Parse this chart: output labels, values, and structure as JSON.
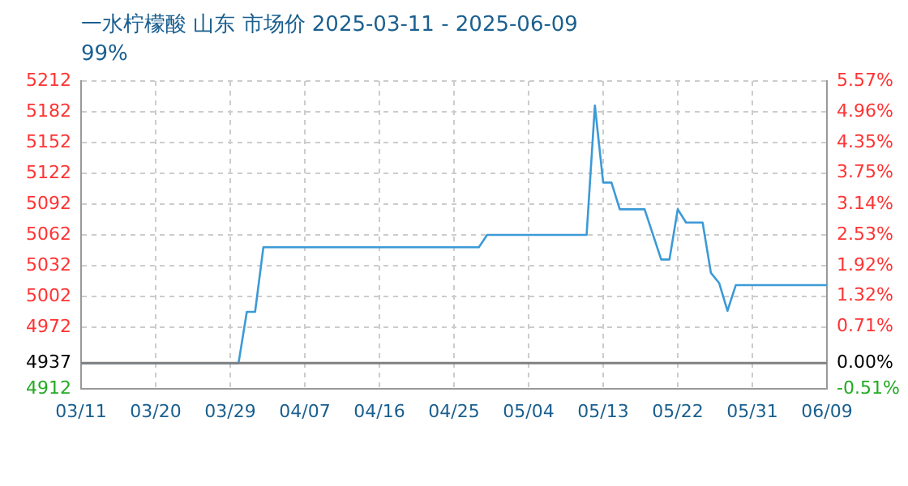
{
  "chart_data": {
    "type": "line",
    "title": "一水柠檬酸 山东 市场价 2025-03-11 - 2025-06-09",
    "subtitle": "99%",
    "x": [
      "2025-03-11",
      "2025-03-30",
      "2025-03-31",
      "2025-04-01",
      "2025-04-02",
      "2025-04-28",
      "2025-04-29",
      "2025-05-11",
      "2025-05-12",
      "2025-05-13",
      "2025-05-14",
      "2025-05-15",
      "2025-05-18",
      "2025-05-20",
      "2025-05-21",
      "2025-05-22",
      "2025-05-23",
      "2025-05-25",
      "2025-05-26",
      "2025-05-27",
      "2025-05-28",
      "2025-05-29",
      "2025-06-09"
    ],
    "series": [
      {
        "color": "#3c9ad6",
        "values": [
          4937,
          4937,
          4987,
          4987,
          5050,
          5050,
          5062,
          5062,
          5188,
          5113,
          5113,
          5087,
          5087,
          5038,
          5038,
          5087,
          5074,
          5074,
          5025,
          5015,
          4988,
          5013,
          5013
        ]
      }
    ],
    "xlim": [
      "2025-03-11",
      "2025-06-09"
    ],
    "xticks": [
      {
        "value": "2025-03-11",
        "label": "03/11"
      },
      {
        "value": "2025-03-20",
        "label": "03/20"
      },
      {
        "value": "2025-03-29",
        "label": "03/29"
      },
      {
        "value": "2025-04-07",
        "label": "04/07"
      },
      {
        "value": "2025-04-16",
        "label": "04/16"
      },
      {
        "value": "2025-04-25",
        "label": "04/25"
      },
      {
        "value": "2025-05-04",
        "label": "05/04"
      },
      {
        "value": "2025-05-13",
        "label": "05/13"
      },
      {
        "value": "2025-05-22",
        "label": "05/22"
      },
      {
        "value": "2025-05-31",
        "label": "05/31"
      },
      {
        "value": "2025-06-09",
        "label": "06/09"
      }
    ],
    "ylim": [
      4912,
      5212
    ],
    "yticks": [
      4912,
      4937,
      4972,
      5002,
      5032,
      5062,
      5092,
      5122,
      5152,
      5182,
      5212
    ],
    "y2lim": [
      -0.51,
      5.57
    ],
    "y2ticks": [
      {
        "value": -0.51,
        "label": "-0.51%"
      },
      {
        "value": 0,
        "label": "0.00%"
      },
      {
        "value": 0.71,
        "label": "0.71%"
      },
      {
        "value": 1.32,
        "label": "1.32%"
      },
      {
        "value": 1.92,
        "label": "1.92%"
      },
      {
        "value": 2.53,
        "label": "2.53%"
      },
      {
        "value": 3.14,
        "label": "3.14%"
      },
      {
        "value": 3.75,
        "label": "3.75%"
      },
      {
        "value": 4.35,
        "label": "4.35%"
      },
      {
        "value": 4.96,
        "label": "4.96%"
      },
      {
        "value": 5.57,
        "label": "5.57%"
      }
    ],
    "ref_lines": [
      {
        "axis": "y",
        "value": 4937,
        "color": "#808080"
      }
    ],
    "grid": true,
    "legend": false,
    "marker": "none",
    "line_style": "solid"
  }
}
